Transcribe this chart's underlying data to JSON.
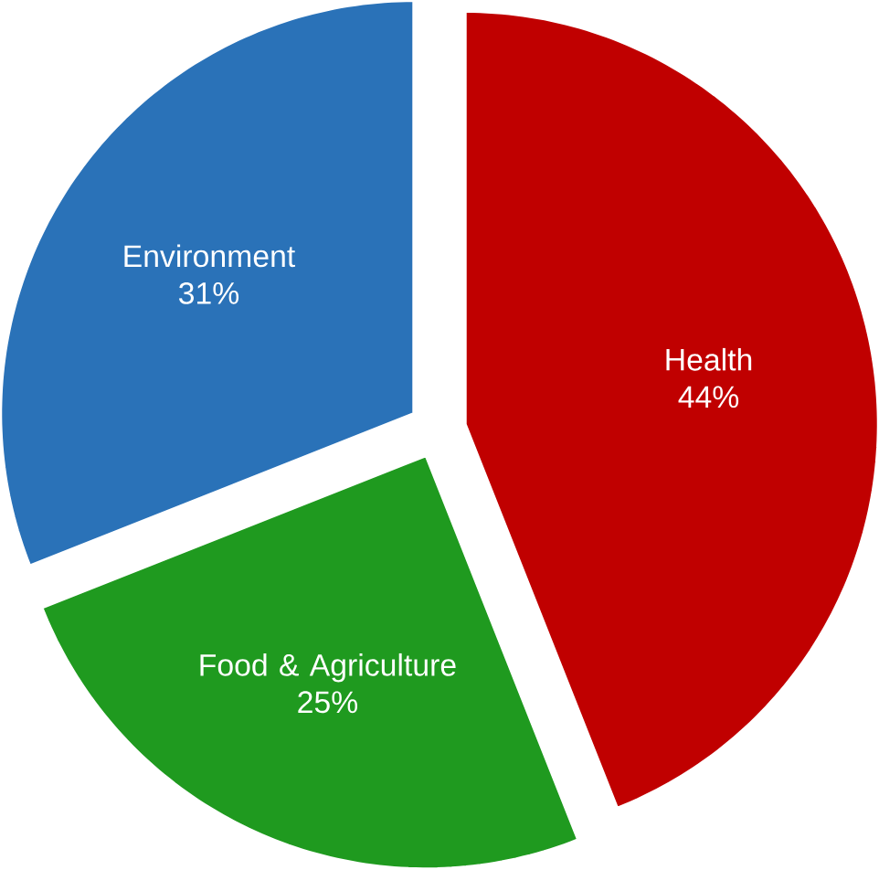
{
  "chart_data": {
    "type": "pie",
    "categories": [
      "Health",
      "Food & Agriculture",
      "Environment"
    ],
    "values": [
      44,
      25,
      31
    ],
    "value_labels": [
      "44%",
      "25%",
      "31%"
    ],
    "colors": [
      "#c00000",
      "#1f9a1f",
      "#2a72b8"
    ]
  }
}
